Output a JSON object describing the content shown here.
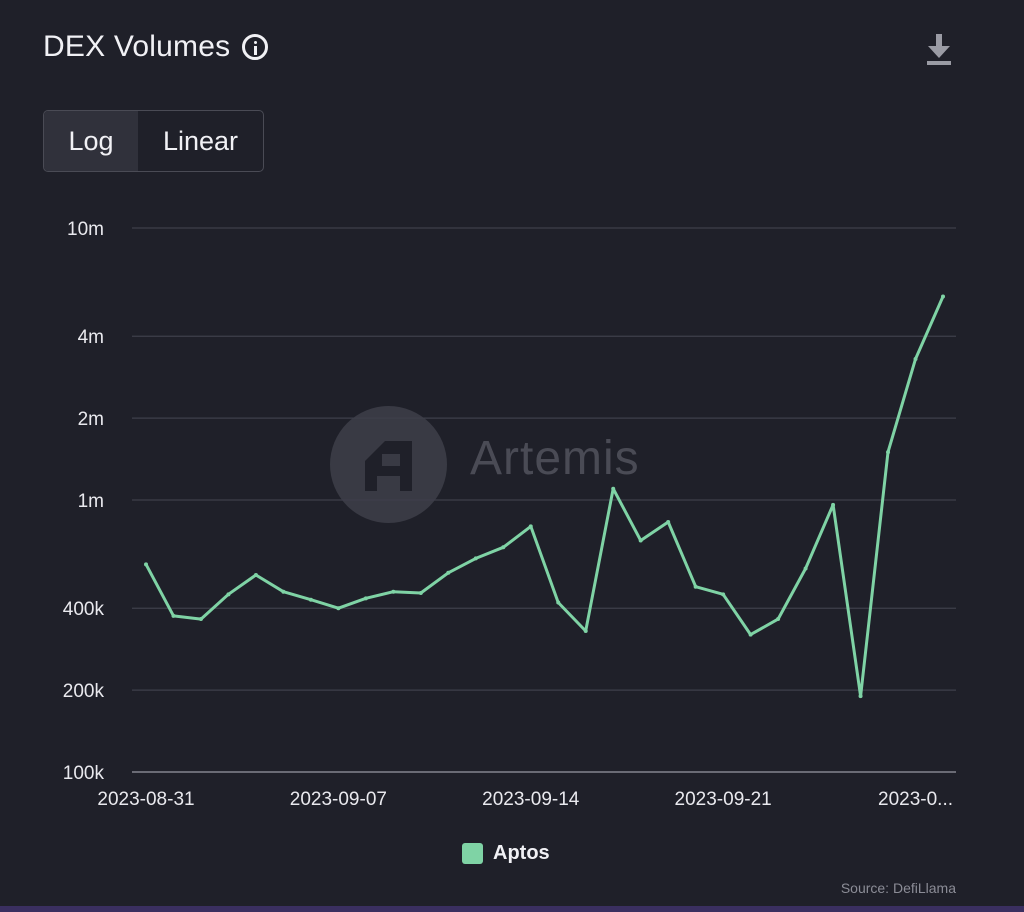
{
  "header": {
    "title": "DEX Volumes",
    "info_icon": "info-icon",
    "download_icon": "download-icon"
  },
  "scale_toggle": {
    "options": [
      "Log",
      "Linear"
    ],
    "selected": "Log"
  },
  "watermark": {
    "text": "Artemis"
  },
  "source": "Source: DefiLlama",
  "colors": {
    "series": "#7fd3a5",
    "background": "#1f2029",
    "grid": "#3e3f4a"
  },
  "chart_data": {
    "type": "line",
    "title": "DEX Volumes",
    "xlabel": "",
    "ylabel": "",
    "yscale": "log",
    "ylim": [
      100000,
      10000000
    ],
    "y_ticks": [
      {
        "value": 10000000,
        "label": "10m"
      },
      {
        "value": 4000000,
        "label": "4m"
      },
      {
        "value": 2000000,
        "label": "2m"
      },
      {
        "value": 1000000,
        "label": "1m"
      },
      {
        "value": 400000,
        "label": "400k"
      },
      {
        "value": 200000,
        "label": "200k"
      },
      {
        "value": 100000,
        "label": "100k"
      }
    ],
    "x_ticks": [
      {
        "date": "2023-08-31",
        "label": "2023-08-31"
      },
      {
        "date": "2023-09-07",
        "label": "2023-09-07"
      },
      {
        "date": "2023-09-14",
        "label": "2023-09-14"
      },
      {
        "date": "2023-09-21",
        "label": "2023-09-21"
      },
      {
        "date": "2023-09-28",
        "label": "2023-0..."
      }
    ],
    "x_range": [
      "2023-08-31",
      "2023-09-29"
    ],
    "grid": true,
    "legend": "bottom-center",
    "series": [
      {
        "name": "Aptos",
        "color": "#7fd3a5",
        "points": [
          {
            "x": "2023-08-31",
            "y": 580000
          },
          {
            "x": "2023-09-01",
            "y": 375000
          },
          {
            "x": "2023-09-02",
            "y": 365000
          },
          {
            "x": "2023-09-03",
            "y": 450000
          },
          {
            "x": "2023-09-04",
            "y": 530000
          },
          {
            "x": "2023-09-05",
            "y": 460000
          },
          {
            "x": "2023-09-06",
            "y": 430000
          },
          {
            "x": "2023-09-07",
            "y": 400000
          },
          {
            "x": "2023-09-08",
            "y": 435000
          },
          {
            "x": "2023-09-09",
            "y": 460000
          },
          {
            "x": "2023-09-10",
            "y": 455000
          },
          {
            "x": "2023-09-11",
            "y": 540000
          },
          {
            "x": "2023-09-12",
            "y": 610000
          },
          {
            "x": "2023-09-13",
            "y": 670000
          },
          {
            "x": "2023-09-14",
            "y": 800000
          },
          {
            "x": "2023-09-15",
            "y": 420000
          },
          {
            "x": "2023-09-16",
            "y": 330000
          },
          {
            "x": "2023-09-17",
            "y": 1100000
          },
          {
            "x": "2023-09-18",
            "y": 710000
          },
          {
            "x": "2023-09-19",
            "y": 830000
          },
          {
            "x": "2023-09-20",
            "y": 480000
          },
          {
            "x": "2023-09-21",
            "y": 450000
          },
          {
            "x": "2023-09-22",
            "y": 320000
          },
          {
            "x": "2023-09-23",
            "y": 365000
          },
          {
            "x": "2023-09-24",
            "y": 560000
          },
          {
            "x": "2023-09-25",
            "y": 960000
          },
          {
            "x": "2023-09-26",
            "y": 190000
          },
          {
            "x": "2023-09-27",
            "y": 1500000
          },
          {
            "x": "2023-09-28",
            "y": 3300000
          },
          {
            "x": "2023-09-29",
            "y": 5600000
          }
        ]
      }
    ]
  }
}
